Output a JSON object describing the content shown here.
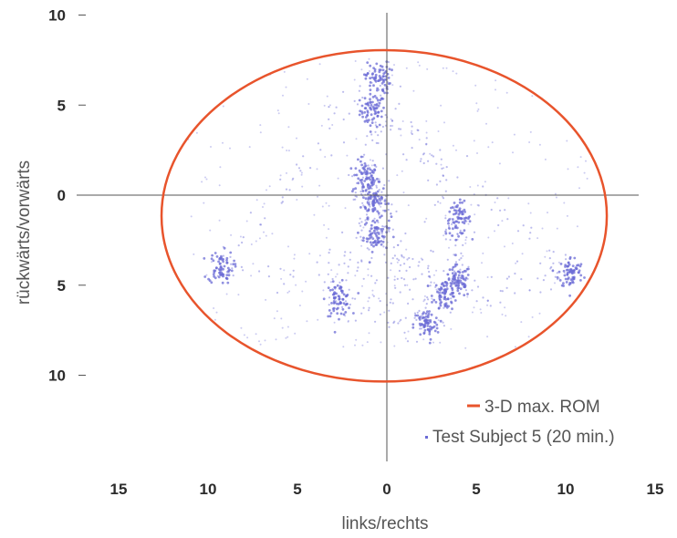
{
  "chart_data": {
    "type": "scatter",
    "xlabel": "links/rechts",
    "ylabel": "rückwärts/vorwärts",
    "xlim": [
      -15,
      15
    ],
    "ylim": [
      -14,
      10
    ],
    "x_ticks": [
      {
        "value": -15,
        "label": "15"
      },
      {
        "value": -10,
        "label": "10"
      },
      {
        "value": -5,
        "label": "5"
      },
      {
        "value": 0,
        "label": "0"
      },
      {
        "value": 5,
        "label": "5"
      },
      {
        "value": 10,
        "label": "10"
      },
      {
        "value": 15,
        "label": "15"
      }
    ],
    "y_ticks": [
      {
        "value": 10,
        "label": "10"
      },
      {
        "value": 5,
        "label": "5"
      },
      {
        "value": 0,
        "label": "0"
      },
      {
        "value": -5,
        "label": "5"
      },
      {
        "value": -10,
        "label": "10"
      }
    ],
    "grid": false,
    "legend_position": "bottom-right",
    "legend": [
      {
        "label": "3-D max. ROM",
        "marker": "line",
        "color": "#e8542c"
      },
      {
        "label": "Test Subject 5 (20 min.)",
        "marker": "dot",
        "color": "#6b6bd6"
      }
    ],
    "ellipse": {
      "name": "3-D max. ROM",
      "center_x": -0.15,
      "center_y": -1.15,
      "radius_x": 12.45,
      "radius_y": 9.2,
      "color": "#e8542c"
    },
    "scatter": {
      "name": "Test Subject 5 (20 min.)",
      "color": "#6b6bd6",
      "clusters": [
        {
          "x": -0.8,
          "y": 4.7
        },
        {
          "x": -1.2,
          "y": 1.0
        },
        {
          "x": -0.7,
          "y": -0.3
        },
        {
          "x": -0.6,
          "y": -2.2
        },
        {
          "x": 4.0,
          "y": -1.3
        },
        {
          "x": 4.0,
          "y": -4.8
        },
        {
          "x": 3.3,
          "y": -5.5
        },
        {
          "x": -2.7,
          "y": -5.8
        },
        {
          "x": 2.2,
          "y": -7.2
        },
        {
          "x": 10.3,
          "y": -4.3
        },
        {
          "x": -9.3,
          "y": -4.0
        },
        {
          "x": -0.5,
          "y": 6.5
        }
      ]
    }
  },
  "colors": {
    "ellipse": "#e8542c",
    "points": "#6b6bd6",
    "axis": "#555555",
    "tick_text": "#2b2b2b"
  }
}
